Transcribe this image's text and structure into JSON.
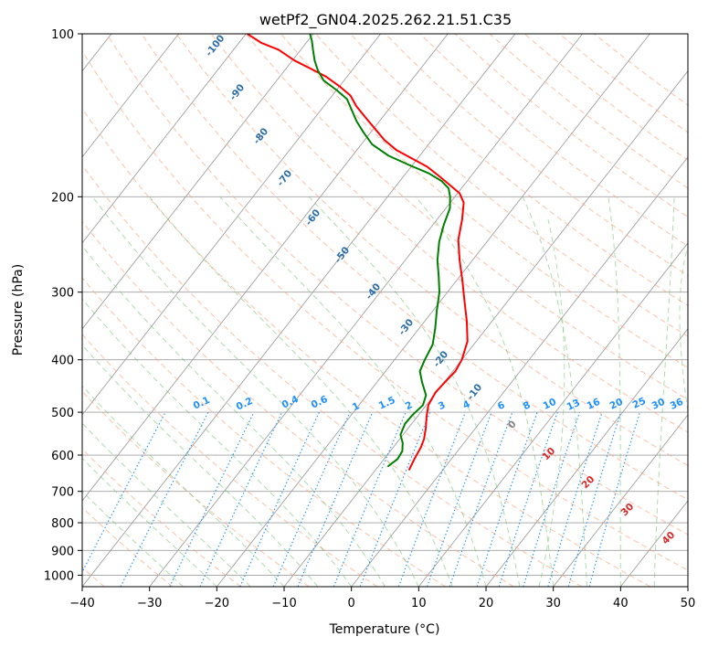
{
  "chart_data": {
    "type": "line",
    "title": "wetPf2_GN04.2025.262.21.51.C35",
    "xlabel": "Temperature (°C)",
    "ylabel": "Pressure (hPa)",
    "xlim": [
      -40,
      50
    ],
    "ylim": [
      1050,
      100
    ],
    "y_scale": "log",
    "skew_deg_per_decade": 63,
    "xticks": [
      -40,
      -30,
      -20,
      -10,
      0,
      10,
      20,
      30,
      40,
      50
    ],
    "yticks": [
      100,
      200,
      300,
      400,
      500,
      600,
      700,
      800,
      900,
      1000
    ],
    "grid": true,
    "series": [
      {
        "name": "temperature",
        "color": "#ff0000",
        "points": [
          [
            -5.0,
            640
          ],
          [
            -5.5,
            610
          ],
          [
            -5.9,
            580
          ],
          [
            -6.4,
            560
          ],
          [
            -7.4,
            535
          ],
          [
            -8.6,
            510
          ],
          [
            -9.7,
            485
          ],
          [
            -10.1,
            460
          ],
          [
            -9.9,
            440
          ],
          [
            -9.6,
            420
          ],
          [
            -10.0,
            400
          ],
          [
            -11.3,
            370
          ],
          [
            -13.7,
            340
          ],
          [
            -16.6,
            310
          ],
          [
            -19.2,
            285
          ],
          [
            -21.9,
            262
          ],
          [
            -24.5,
            240
          ],
          [
            -26.3,
            220
          ],
          [
            -28.0,
            205
          ],
          [
            -29.7,
            197
          ],
          [
            -32.2,
            190
          ],
          [
            -34.8,
            183
          ],
          [
            -37.6,
            176
          ],
          [
            -40.8,
            170
          ],
          [
            -44.1,
            164
          ],
          [
            -47.1,
            157
          ],
          [
            -49.7,
            150
          ],
          [
            -52.4,
            143
          ],
          [
            -55.2,
            136
          ],
          [
            -57.3,
            130
          ],
          [
            -60.0,
            125
          ],
          [
            -63.1,
            120
          ],
          [
            -66.3,
            116
          ],
          [
            -69.7,
            112
          ],
          [
            -73.3,
            107
          ],
          [
            -76.6,
            104
          ],
          [
            -79.8,
            100
          ]
        ]
      },
      {
        "name": "dewpoint",
        "color": "#008000",
        "points": [
          [
            -8.6,
            630
          ],
          [
            -8.0,
            610
          ],
          [
            -8.2,
            590
          ],
          [
            -9.1,
            570
          ],
          [
            -10.4,
            550
          ],
          [
            -11.0,
            525
          ],
          [
            -10.9,
            505
          ],
          [
            -10.5,
            485
          ],
          [
            -11.2,
            465
          ],
          [
            -13.3,
            440
          ],
          [
            -14.9,
            420
          ],
          [
            -15.5,
            400
          ],
          [
            -16.1,
            375
          ],
          [
            -17.6,
            350
          ],
          [
            -19.4,
            325
          ],
          [
            -21.2,
            300
          ],
          [
            -23.2,
            280
          ],
          [
            -25.2,
            262
          ],
          [
            -27.1,
            242
          ],
          [
            -28.4,
            225
          ],
          [
            -29.4,
            210
          ],
          [
            -30.7,
            200
          ],
          [
            -31.9,
            193
          ],
          [
            -33.8,
            187
          ],
          [
            -36.6,
            181
          ],
          [
            -40.3,
            175
          ],
          [
            -44.6,
            168
          ],
          [
            -48.4,
            160
          ],
          [
            -51.1,
            152
          ],
          [
            -53.4,
            145
          ],
          [
            -55.5,
            138
          ],
          [
            -57.4,
            132
          ],
          [
            -60.0,
            127
          ],
          [
            -63.0,
            122
          ],
          [
            -65.0,
            117
          ],
          [
            -66.7,
            112
          ],
          [
            -68.2,
            107
          ],
          [
            -69.4,
            103
          ],
          [
            -70.5,
            100
          ]
        ]
      }
    ],
    "annotations": {
      "dry_adiabat_labels": [
        "-100",
        "-90",
        "-80",
        "-70",
        "-60",
        "-50",
        "-40",
        "-30",
        "-20",
        "-10"
      ],
      "mixing_ratio_labels": [
        "0.1",
        "0.2",
        "0.4",
        "0.6",
        "1",
        "1.5",
        "2",
        "3",
        "4",
        "6",
        "8",
        "10",
        "13",
        "16",
        "20",
        "25",
        "30",
        "36"
      ],
      "moist_adiabat_labels": [
        "0",
        "10",
        "20",
        "30",
        "40"
      ]
    },
    "colors": {
      "dry_adiabat_label": "#2e6fa7",
      "mixing_ratio": "#1e90ff",
      "moist_label": "#d62728",
      "moist_label_zero": "#808080",
      "dry_adiabat_line": "#ffa07a",
      "moist_adiabat_line": "#6bbd6b",
      "isotherm": "#a0a0a0",
      "isobar": "#a0a0a0",
      "saturation_curve": "#c8a880"
    }
  }
}
